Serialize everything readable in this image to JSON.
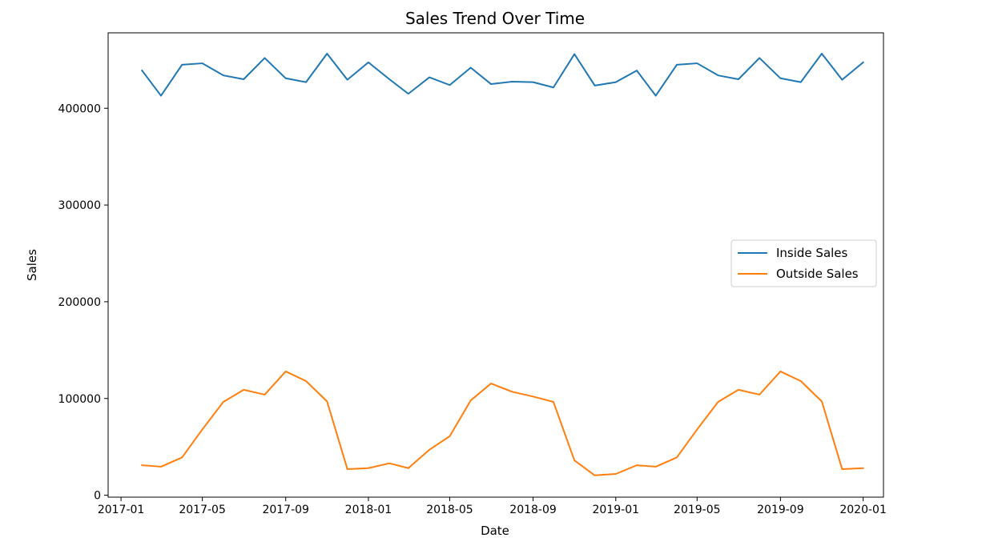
{
  "chart_data": {
    "type": "line",
    "title": "Sales Trend Over Time",
    "xlabel": "Date",
    "ylabel": "Sales",
    "grid": false,
    "legend_position": "center-right",
    "xlim": [
      "2016-12-13",
      "2020-01-31"
    ],
    "ylim": [
      -2000,
      478000
    ],
    "x_ticks": [
      "2017-01-01",
      "2017-05-01",
      "2017-09-01",
      "2018-01-01",
      "2018-05-01",
      "2018-09-01",
      "2019-01-01",
      "2019-05-01",
      "2019-09-01",
      "2020-01-01"
    ],
    "x_tick_labels": [
      "2017-01",
      "2017-05",
      "2017-09",
      "2018-01",
      "2018-05",
      "2018-09",
      "2019-01",
      "2019-05",
      "2019-09",
      "2020-01"
    ],
    "y_ticks": [
      0,
      100000,
      200000,
      300000,
      400000
    ],
    "y_tick_labels": [
      "0",
      "100000",
      "200000",
      "300000",
      "400000"
    ],
    "x": [
      "2017-02-01",
      "2017-03-01",
      "2017-04-01",
      "2017-05-01",
      "2017-06-01",
      "2017-07-01",
      "2017-08-01",
      "2017-09-01",
      "2017-10-01",
      "2017-11-01",
      "2017-12-01",
      "2018-01-01",
      "2018-02-01",
      "2018-03-01",
      "2018-04-01",
      "2018-05-01",
      "2018-06-01",
      "2018-07-01",
      "2018-08-01",
      "2018-09-01",
      "2018-10-01",
      "2018-11-01",
      "2018-12-01",
      "2019-01-01",
      "2019-02-01",
      "2019-03-01",
      "2019-04-01",
      "2019-05-01",
      "2019-06-01",
      "2019-07-01",
      "2019-08-01",
      "2019-09-01",
      "2019-10-01",
      "2019-11-01",
      "2019-12-01",
      "2020-01-01"
    ],
    "series": [
      {
        "name": "Inside Sales",
        "color": "#1f77b4",
        "values": [
          439000,
          413000,
          445000,
          446500,
          434000,
          430000,
          452000,
          431000,
          427000,
          456500,
          429500,
          447500,
          430000,
          415000,
          432000,
          424000,
          442000,
          425000,
          427500,
          427000,
          421500,
          456000,
          423500,
          427000,
          439000,
          413000,
          445000,
          446500,
          434000,
          430000,
          452000,
          431000,
          427000,
          456500,
          429500,
          447500
        ]
      },
      {
        "name": "Outside Sales",
        "color": "#ff7f0e",
        "values": [
          31000,
          29500,
          39000,
          68000,
          96500,
          109000,
          104000,
          128000,
          118000,
          97000,
          27000,
          28000,
          33000,
          28000,
          47000,
          61000,
          98000,
          115500,
          107000,
          102000,
          96500,
          36000,
          20500,
          22000,
          31000,
          29500,
          39000,
          68000,
          96500,
          109000,
          104000,
          128000,
          118000,
          97000,
          27000,
          28000
        ]
      }
    ]
  }
}
